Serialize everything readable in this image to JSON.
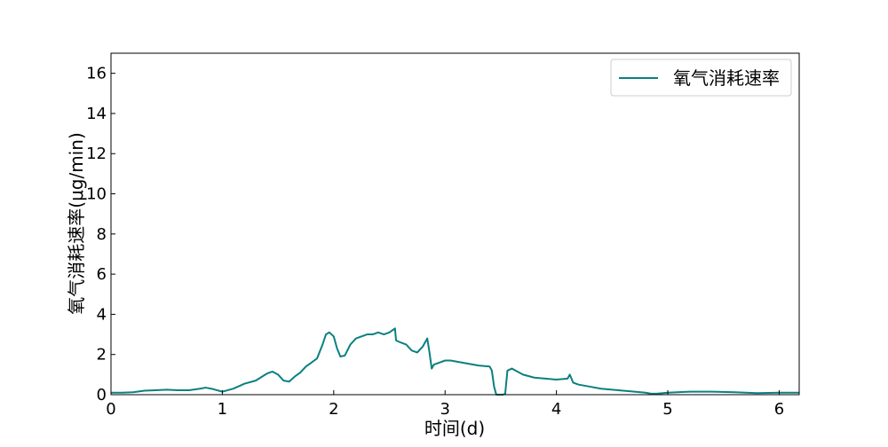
{
  "chart_data": {
    "type": "line",
    "xlabel": "时间(d)",
    "ylabel": "氧气消耗速率(μg/min)",
    "xlim": [
      0,
      6.18
    ],
    "ylim": [
      0,
      17
    ],
    "xticks": [
      0,
      1,
      2,
      3,
      4,
      5,
      6
    ],
    "yticks": [
      0,
      2,
      4,
      6,
      8,
      10,
      12,
      14,
      16
    ],
    "grid": false,
    "legend_position": "top-right",
    "series": [
      {
        "name": "氧气消耗速率",
        "color": "#0b8080",
        "x": [
          0.0,
          0.1,
          0.2,
          0.3,
          0.4,
          0.5,
          0.6,
          0.7,
          0.8,
          0.85,
          0.9,
          1.0,
          1.1,
          1.2,
          1.3,
          1.4,
          1.45,
          1.5,
          1.55,
          1.6,
          1.65,
          1.7,
          1.75,
          1.8,
          1.85,
          1.9,
          1.93,
          1.96,
          2.0,
          2.03,
          2.06,
          2.1,
          2.15,
          2.2,
          2.25,
          2.3,
          2.35,
          2.4,
          2.45,
          2.5,
          2.55,
          2.56,
          2.6,
          2.65,
          2.7,
          2.75,
          2.8,
          2.84,
          2.86,
          2.88,
          2.9,
          2.95,
          3.0,
          3.05,
          3.1,
          3.2,
          3.3,
          3.4,
          3.42,
          3.44,
          3.46,
          3.48,
          3.5,
          3.52,
          3.54,
          3.56,
          3.6,
          3.65,
          3.7,
          3.8,
          3.9,
          4.0,
          4.1,
          4.12,
          4.15,
          4.2,
          4.3,
          4.4,
          4.5,
          4.6,
          4.7,
          4.8,
          4.85,
          4.9,
          5.0,
          5.2,
          5.4,
          5.6,
          5.8,
          6.0,
          6.18
        ],
        "values": [
          0.1,
          0.1,
          0.12,
          0.2,
          0.22,
          0.25,
          0.22,
          0.22,
          0.3,
          0.35,
          0.3,
          0.15,
          0.3,
          0.55,
          0.7,
          1.05,
          1.15,
          1.0,
          0.7,
          0.65,
          0.9,
          1.1,
          1.4,
          1.6,
          1.8,
          2.5,
          3.0,
          3.1,
          2.9,
          2.3,
          1.9,
          1.95,
          2.5,
          2.8,
          2.9,
          3.0,
          3.0,
          3.1,
          3.0,
          3.1,
          3.3,
          2.7,
          2.6,
          2.5,
          2.2,
          2.1,
          2.4,
          2.8,
          2.1,
          1.3,
          1.5,
          1.6,
          1.7,
          1.7,
          1.65,
          1.55,
          1.45,
          1.4,
          1.2,
          0.4,
          0.0,
          0.0,
          0.0,
          0.0,
          0.05,
          1.2,
          1.3,
          1.15,
          1.0,
          0.85,
          0.8,
          0.75,
          0.8,
          1.0,
          0.6,
          0.5,
          0.4,
          0.3,
          0.25,
          0.2,
          0.15,
          0.1,
          0.05,
          0.05,
          0.1,
          0.15,
          0.15,
          0.12,
          0.08,
          0.1,
          0.1
        ]
      }
    ]
  }
}
